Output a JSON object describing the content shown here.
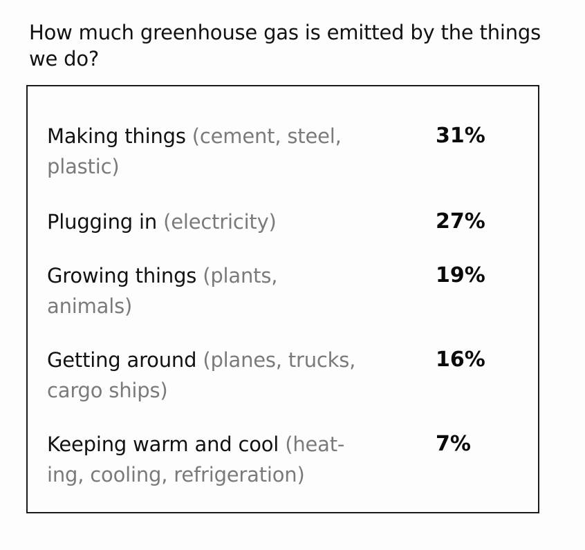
{
  "title": "How much greenhouse gas is emitted by the things we do?",
  "rows": [
    {
      "main": "Making things",
      "detail_line1": "(cement, steel,",
      "detail_line2": "plastic)",
      "value": "31%"
    },
    {
      "main": "Plugging in",
      "detail_line1": "(electricity)",
      "detail_line2": "",
      "value": "27%"
    },
    {
      "main": "Growing things",
      "detail_line1": "(plants,",
      "detail_line2": "animals)",
      "value": "19%"
    },
    {
      "main": "Getting around",
      "detail_line1": "(planes, trucks,",
      "detail_line2": "cargo ships)",
      "value": "16%"
    },
    {
      "main": "Keeping warm and cool",
      "detail_line1": "(heat-",
      "detail_line2": "ing, cooling, refrigeration)",
      "value": "7%"
    }
  ]
}
